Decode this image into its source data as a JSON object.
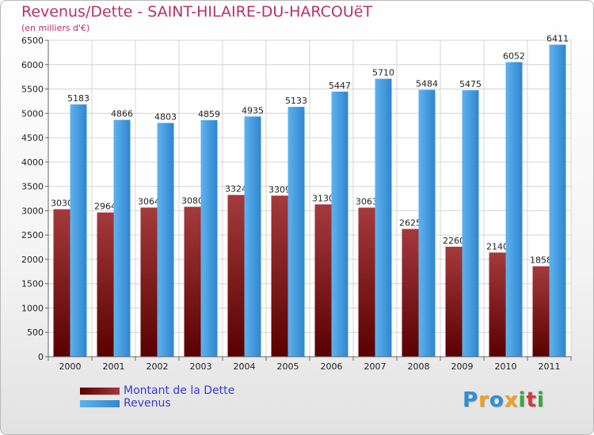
{
  "header": {
    "title": "Revenus/Dette - SAINT-HILAIRE-DU-HARCOUëT",
    "subtitle": "(en milliers d'€)"
  },
  "chart_data": {
    "type": "bar",
    "categories": [
      "2000",
      "2001",
      "2002",
      "2003",
      "2004",
      "2005",
      "2006",
      "2007",
      "2008",
      "2009",
      "2010",
      "2011"
    ],
    "series": [
      {
        "name": "Montant de la Dette",
        "color": "#8c1f22",
        "values": [
          3030,
          2964,
          3064,
          3080,
          3324,
          3309,
          3130,
          3063,
          2625,
          2260,
          2140,
          1858
        ]
      },
      {
        "name": "Revenus",
        "color": "#4aa3e6",
        "values": [
          5183,
          4866,
          4803,
          4859,
          4935,
          5133,
          5447,
          5710,
          5484,
          5475,
          6052,
          6411
        ]
      }
    ],
    "ylim": [
      0,
      6500
    ],
    "yticks": [
      0,
      500,
      1000,
      1500,
      2000,
      2500,
      3000,
      3500,
      4000,
      4500,
      5000,
      5500,
      6000,
      6500
    ],
    "grid": true,
    "legend_position": "bottom-left"
  },
  "logo": {
    "letters": [
      "P",
      "r",
      "o",
      "x",
      "i",
      "t",
      "i"
    ],
    "colors": [
      "#2e8fd8",
      "#f0a020",
      "#2e8fd8",
      "#f0a020",
      "#3aa63a",
      "#d23a3a",
      "#3aa63a"
    ]
  }
}
